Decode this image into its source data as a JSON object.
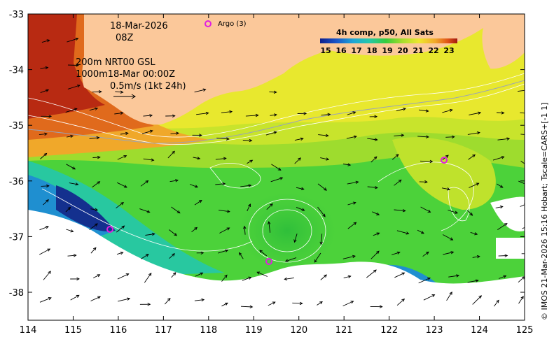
{
  "map": {
    "date_line": "18-Mar-2026",
    "time_line": "08Z",
    "contour_line": "200m  NRT00 GSL",
    "contour_line2": "1000m18-Mar 00:00Z",
    "speed_line": "0.5m/s (1kt 24h)",
    "argo_label": "Argo (3)",
    "credit": "© IMOS 21-Mar-2026 15:16 Hobart; Tscale=CARS+[-1 1]",
    "colorbar": {
      "title": "4h comp, p50, All Sats",
      "ticks": [
        "15",
        "16",
        "17",
        "18",
        "19",
        "20",
        "21",
        "22",
        "23"
      ],
      "colors": [
        "#0d1e8c",
        "#1a55c8",
        "#1fa6d6",
        "#27c8a8",
        "#35cc3c",
        "#a6de2c",
        "#eee82e",
        "#f2a82a",
        "#e05418",
        "#a01810"
      ]
    },
    "x_ticks": [
      "114",
      "115",
      "116",
      "117",
      "118",
      "119",
      "120",
      "121",
      "122",
      "123",
      "124",
      "125"
    ],
    "y_ticks": [
      "-33",
      "-34",
      "-35",
      "-36",
      "-37",
      "-38"
    ],
    "land_color": "#fbc89a",
    "argo_color": "#e020e0"
  }
}
